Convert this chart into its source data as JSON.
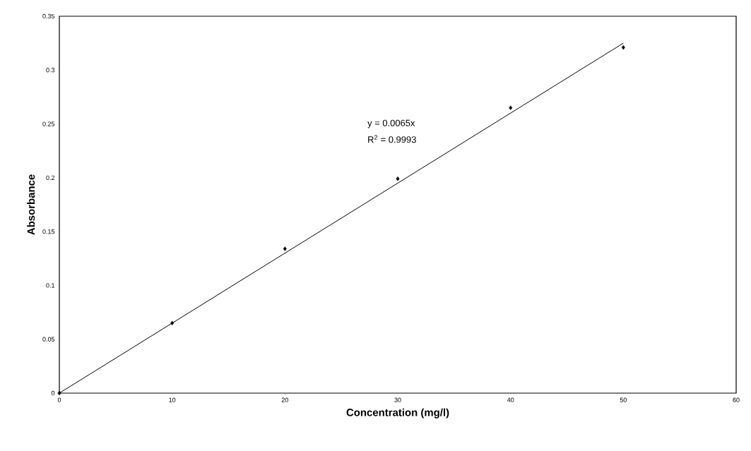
{
  "chart_data": {
    "type": "scatter",
    "xlabel": "Concentration (mg/l)",
    "ylabel": "Absorbance",
    "annotations": [
      "y = 0.0065x",
      "R$^{2}$ = 0.9993"
    ],
    "series": [
      {
        "color": "#000000",
        "marker": "diamond",
        "x": [
          0,
          10,
          20,
          30,
          40,
          50
        ],
        "values": [
          0,
          0.065,
          0.134,
          0.199,
          0.265,
          0.321
        ]
      },
      {
        "type": "line",
        "color": "#000000",
        "marker": "none",
        "line_style": "solid",
        "x": [
          0,
          50
        ],
        "values": [
          0,
          0.325
        ]
      }
    ],
    "xlim": [
      0,
      60
    ],
    "xticks": [
      0,
      10,
      20,
      30,
      40,
      50,
      60
    ],
    "ylim": [
      0,
      0.35
    ],
    "yticks": [
      0,
      0.05,
      0.1,
      0.15,
      0.2,
      0.25,
      0.3,
      0.35
    ],
    "grid": false
  }
}
